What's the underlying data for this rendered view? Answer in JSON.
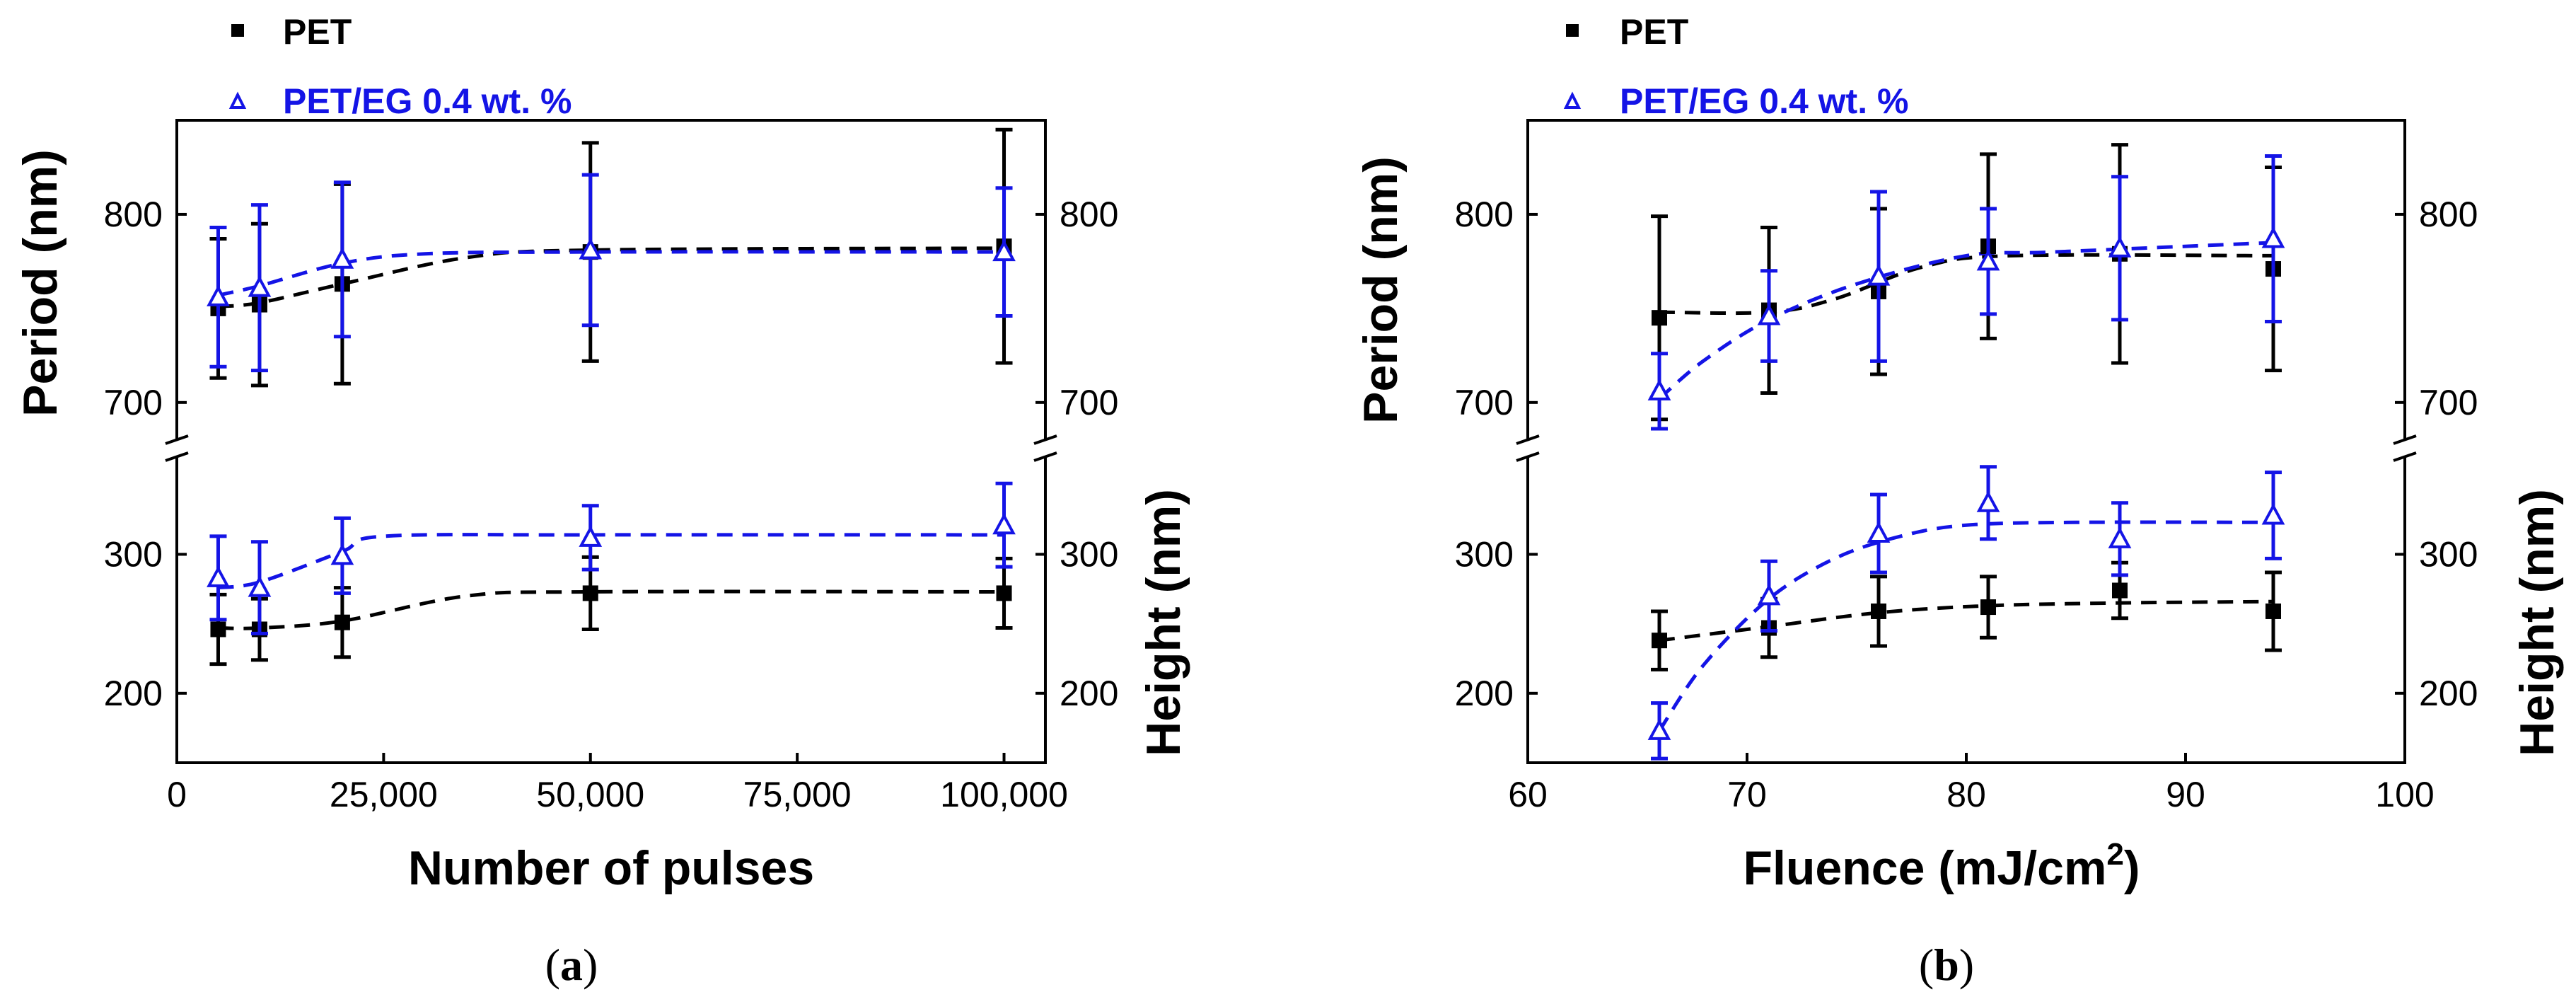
{
  "colors": {
    "pet": "#000000",
    "pet_eg": "#1414e6",
    "axis": "#000000"
  },
  "legend_icons": {
    "pet": "filled-square-icon",
    "pet_eg": "open-triangle-icon"
  },
  "chart_data": [
    {
      "id": "a",
      "type": "scatter",
      "caption_letter": "a",
      "xlabel": "Number of pulses",
      "xlabel_suffix": "",
      "xlabel_sup": "",
      "ylabel_left": "Period (nm)",
      "ylabel_right": "Height (nm)",
      "xlim": [
        0,
        105000
      ],
      "xticks": [
        0,
        25000,
        50000,
        75000,
        100000
      ],
      "xtick_labels": [
        "0",
        "25,000",
        "50,000",
        "75,000",
        "100,000"
      ],
      "period_ylim": [
        680,
        850
      ],
      "period_yticks": [
        700,
        800
      ],
      "period_ytick_labels": [
        "700",
        "800"
      ],
      "height_ylim": [
        150,
        370
      ],
      "height_yticks": [
        200,
        300
      ],
      "height_ytick_labels": [
        "200",
        "300"
      ],
      "legend": [
        "PET",
        "PET/EG 0.4 wt. %"
      ],
      "x": [
        5000,
        10000,
        20000,
        50000,
        100000
      ],
      "series": [
        {
          "name": "PET",
          "quantity": "period",
          "values": [
            750,
            752,
            763,
            780,
            783
          ],
          "err": [
            37,
            43,
            53,
            58,
            62
          ],
          "fit_x": [
            5000,
            10000,
            20000,
            35000,
            50000,
            100000
          ],
          "fit_y": [
            751,
            753,
            763,
            777,
            781,
            782
          ]
        },
        {
          "name": "PET/EG 0.4 wt. %",
          "quantity": "period",
          "values": [
            756,
            761,
            776,
            781,
            780
          ],
          "err": [
            37,
            44,
            41,
            40,
            34
          ],
          "fit_x": [
            5000,
            10000,
            20000,
            30000,
            50000,
            100000
          ],
          "fit_y": [
            757,
            762,
            774,
            779,
            780,
            780
          ]
        },
        {
          "name": "PET",
          "quantity": "height",
          "values": [
            246,
            246,
            251,
            272,
            272
          ],
          "err": [
            25,
            22,
            25,
            26,
            25
          ],
          "fit_x": [
            5000,
            10000,
            20000,
            35000,
            50000,
            100000
          ],
          "fit_y": [
            247,
            247,
            252,
            270,
            273,
            273
          ]
        },
        {
          "name": "PET/EG 0.4 wt. %",
          "quantity": "height",
          "values": [
            283,
            276,
            299,
            312,
            321
          ],
          "err": [
            30,
            33,
            27,
            23,
            30
          ],
          "fit_x": [
            5000,
            10000,
            20000,
            25000,
            50000,
            100000
          ],
          "fit_y": [
            276,
            280,
            302,
            313,
            314,
            314
          ]
        }
      ]
    },
    {
      "id": "b",
      "type": "scatter",
      "caption_letter": "b",
      "xlabel": "Fluence (mJ/cm",
      "xlabel_suffix": ")",
      "xlabel_sup": "2",
      "ylabel_left": "Period (nm)",
      "ylabel_right": "Height (nm)",
      "xlim": [
        60,
        100
      ],
      "xticks": [
        60,
        70,
        80,
        90,
        100
      ],
      "xtick_labels": [
        "60",
        "70",
        "80",
        "90",
        "100"
      ],
      "period_ylim": [
        680,
        850
      ],
      "period_yticks": [
        700,
        800
      ],
      "period_ytick_labels": [
        "700",
        "800"
      ],
      "height_ylim": [
        150,
        370
      ],
      "height_yticks": [
        200,
        300
      ],
      "height_ytick_labels": [
        "200",
        "300"
      ],
      "legend": [
        "PET",
        "PET/EG 0.4 wt. %"
      ],
      "x": [
        66,
        71,
        76,
        81,
        87,
        94
      ],
      "series": [
        {
          "name": "PET",
          "quantity": "period",
          "values": [
            745,
            749,
            759,
            783,
            779,
            771
          ],
          "err": [
            54,
            44,
            44,
            49,
            58,
            54
          ],
          "fit_x": [
            66,
            71,
            74,
            78,
            82,
            94
          ],
          "fit_y": [
            748,
            748,
            755,
            772,
            778,
            778
          ]
        },
        {
          "name": "PET/EG 0.4 wt. %",
          "quantity": "period",
          "values": [
            706,
            746,
            767,
            775,
            782,
            787
          ],
          "err": [
            20,
            24,
            45,
            28,
            38,
            44
          ],
          "fit_x": [
            66,
            68,
            71,
            75,
            80,
            84,
            94
          ],
          "fit_y": [
            702,
            722,
            744,
            763,
            778,
            780,
            785
          ]
        },
        {
          "name": "PET",
          "quantity": "height",
          "values": [
            238,
            247,
            259,
            262,
            274,
            259
          ],
          "err": [
            21,
            21,
            25,
            22,
            20,
            28
          ],
          "fit_x": [
            66,
            71,
            76,
            81,
            87,
            94
          ],
          "fit_y": [
            238,
            248,
            258,
            263,
            265,
            266
          ]
        },
        {
          "name": "PET/EG 0.4 wt. %",
          "quantity": "height",
          "values": [
            173,
            270,
            315,
            337,
            311,
            328
          ],
          "err": [
            20,
            25,
            28,
            26,
            26,
            31
          ],
          "fit_x": [
            66,
            68,
            71,
            74,
            77,
            80,
            85,
            94
          ],
          "fit_y": [
            173,
            220,
            268,
            297,
            313,
            321,
            323,
            323
          ]
        }
      ]
    }
  ]
}
